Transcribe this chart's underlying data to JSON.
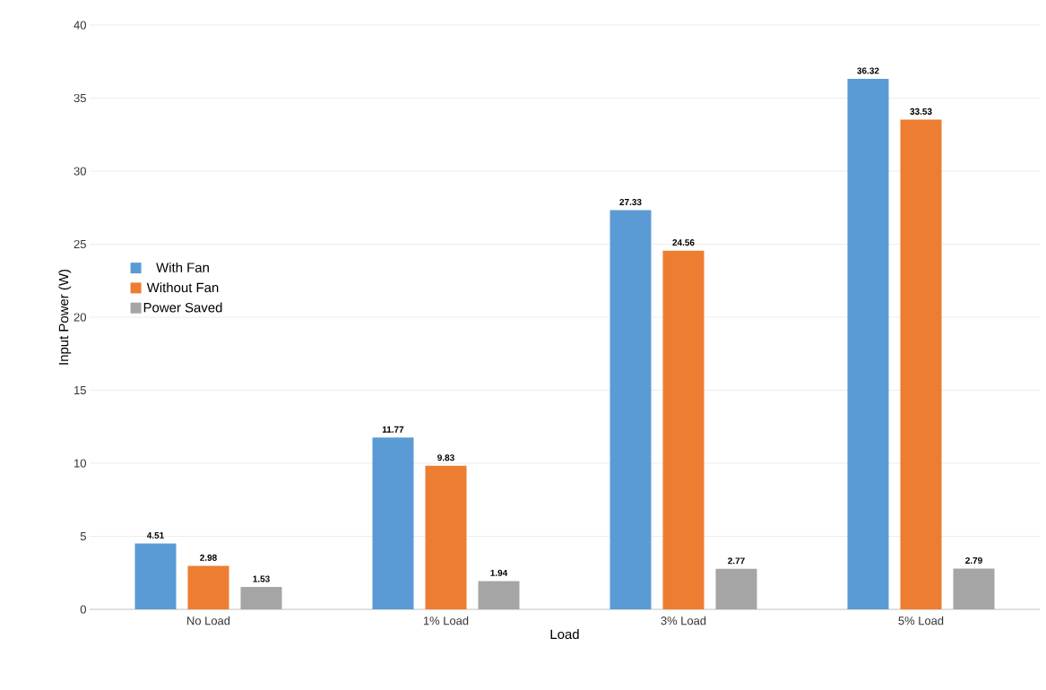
{
  "chart_data": {
    "type": "bar",
    "xlabel": "Load",
    "ylabel": "Input Power (W)",
    "categories": [
      "No Load",
      "1% Load",
      "3% Load",
      "5% Load"
    ],
    "series": [
      {
        "name": "With Fan",
        "color": "#5b9bd5",
        "values": [
          4.51,
          11.77,
          27.33,
          36.32
        ]
      },
      {
        "name": "Without Fan",
        "color": "#ed7d31",
        "values": [
          2.98,
          9.83,
          24.56,
          33.53
        ]
      },
      {
        "name": "Power Saved",
        "color": "#a5a5a5",
        "values": [
          1.53,
          1.94,
          2.77,
          2.79
        ]
      }
    ],
    "ylim": [
      0,
      40
    ],
    "yticks": [
      0,
      5,
      10,
      15,
      20,
      25,
      30,
      35,
      40
    ],
    "grid": "y",
    "legend": "left",
    "data_labels": true
  }
}
